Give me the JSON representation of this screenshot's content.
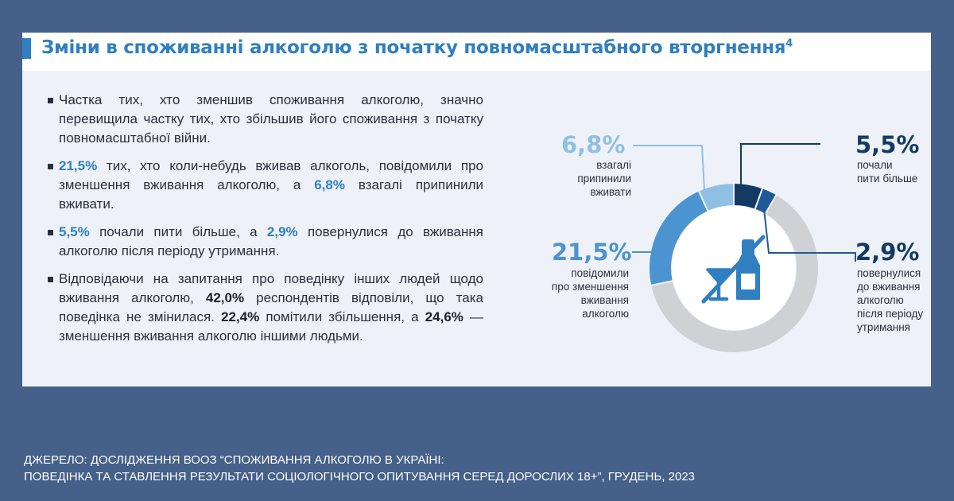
{
  "title": "Зміни в споживанні алкоголю з початку повномасштабного вторгнення",
  "title_footnote": "4",
  "bullets": {
    "b1": "Частка тих, хто зменшив споживання алкоголю, значно перевищила частку тих, хто збільшив його споживання з початку повномасштабної війни.",
    "b2_v1": "21,5%",
    "b2_t1": " тих, хто коли-небудь вживав алкоголь, повідомили про зменшення вживання алкоголю, а ",
    "b2_v2": "6,8%",
    "b2_t2": " взагалі припинили вживати.",
    "b3_v1": "5,5%",
    "b3_t1": " почали пити більше, а ",
    "b3_v2": "2,9%",
    "b3_t2": " повернулися до вживання алкоголю після періоду утримання.",
    "b4_t1": "Відповідаючи на запитання про поведінку інших людей щодо вживання алкоголю, ",
    "b4_v1": "42,0%",
    "b4_t2": " респондентів відповіли, що така поведінка не змінилася. ",
    "b4_v2": "22,4%",
    "b4_t3": " помітили збільшення, а ",
    "b4_v3": "24,6%",
    "b4_t4": " — зменшення вживання алкоголю іншими людьми."
  },
  "source": {
    "line1": "ДЖЕРЕЛО: ДОСЛІДЖЕННЯ ВООЗ “СПОЖИВАННЯ АЛКОГОЛЮ В УКРАЇНІ:",
    "line2": "ПОВЕДІНКА ТА СТАВЛЕННЯ РЕЗУЛЬТАТИ СОЦІОЛОГІЧНОГО ОПИТУВАННЯ СЕРЕД ДОРОСЛИХ 18+”, ГРУДЕНЬ, 2023"
  },
  "colors": {
    "background": "#456089",
    "title": "#2f7fc1",
    "reduced": "#4b93d1",
    "stopped": "#8fc0e4",
    "increased": "#123a63",
    "returned": "#1f5a96",
    "rest": "#cfd1d5",
    "icon": "#2f7fc1"
  },
  "icon": "no-alcohol-icon",
  "chart_data": {
    "type": "pie",
    "style": "donut",
    "unit": "%",
    "slices": [
      {
        "label": "почали пити більше",
        "pct_label": "5,5%",
        "value": 5.5,
        "color": "#123a63"
      },
      {
        "label": "повернулися до вживання алкоголю після періоду утримання",
        "pct_label": "2,9%",
        "value": 2.9,
        "color": "#1f5a96"
      },
      {
        "label": "",
        "pct_label": "",
        "value": 63.3,
        "color": "#cfd1d5"
      },
      {
        "label": "повідомили про зменшення вживання алкоголю",
        "pct_label": "21,5%",
        "value": 21.5,
        "color": "#4b93d1"
      },
      {
        "label": "взагалі припинили вживати",
        "pct_label": "6,8%",
        "value": 6.8,
        "color": "#8fc0e4"
      }
    ],
    "labels": {
      "stopped": {
        "pct": "6,8%",
        "lines": [
          "взагалі",
          "припинили",
          "вживати"
        ],
        "color": "#8fc0e4"
      },
      "increased": {
        "pct": "5,5%",
        "lines": [
          "почали",
          "пити більше"
        ],
        "color": "#123a63"
      },
      "reduced": {
        "pct": "21,5%",
        "lines": [
          "повідомили",
          "про зменшення",
          "вживання",
          "алкоголю"
        ],
        "color": "#4b93d1"
      },
      "returned": {
        "pct": "2,9%",
        "lines": [
          "повернулися",
          "до вживання",
          "алкоголю",
          "після періоду",
          "утримання"
        ],
        "color": "#123a63"
      }
    }
  }
}
